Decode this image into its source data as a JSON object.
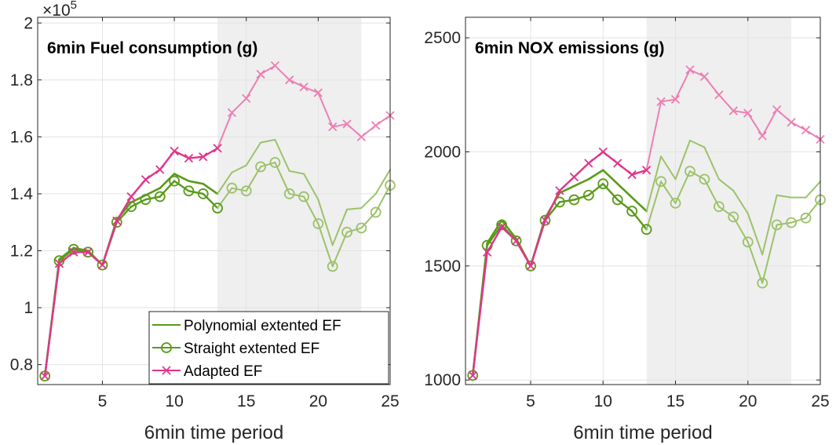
{
  "chart_data": [
    {
      "type": "line",
      "title": "6min Fuel consumption (g)",
      "xlabel": "6min time period",
      "ylabel": "",
      "y_multiplier": {
        "base": "×10",
        "exponent": "5"
      },
      "xlim": [
        0.5,
        25
      ],
      "ylim": [
        73000,
        202000
      ],
      "xticks": [
        5,
        10,
        15,
        20,
        25
      ],
      "xtick_labels": [
        "5",
        "10",
        "15",
        "20",
        "25"
      ],
      "yticks": [
        80000,
        100000,
        120000,
        140000,
        160000,
        180000,
        200000
      ],
      "ytick_labels": [
        "0.8",
        "1",
        "1.2",
        "1.4",
        "1.6",
        "1.8",
        "2"
      ],
      "grid": true,
      "shaded_region": [
        13,
        23
      ],
      "legend": {
        "placement": "bottom-right",
        "entries": [
          "Polynomial extented EF",
          "Straight extented EF",
          "Adapted EF"
        ]
      },
      "x": [
        1,
        2,
        3,
        4,
        5,
        6,
        7,
        8,
        9,
        10,
        11,
        12,
        13,
        14,
        15,
        16,
        17,
        18,
        19,
        20,
        21,
        22,
        23,
        24,
        25
      ],
      "series": [
        {
          "name": "Polynomial extented EF",
          "color": "#5a9a1a",
          "marker": "none",
          "values": [
            76000,
            117000,
            121000,
            120000,
            115000,
            131000,
            137000,
            139500,
            142000,
            147000,
            144500,
            143500,
            140000,
            147500,
            150000,
            158000,
            159000,
            148000,
            147000,
            138000,
            122000,
            134500,
            135000,
            140000,
            148500
          ]
        },
        {
          "name": "Straight extented EF",
          "color": "#5a9a1a",
          "marker": "circle",
          "values": [
            76000,
            116500,
            120500,
            119500,
            115000,
            130000,
            135500,
            138000,
            139000,
            144500,
            141000,
            140000,
            135000,
            142000,
            141000,
            149500,
            151000,
            140000,
            139000,
            129500,
            114500,
            126500,
            128000,
            133500,
            143000
          ]
        },
        {
          "name": "Adapted EF",
          "color": "#e0358a",
          "marker": "x",
          "values": [
            76000,
            115500,
            119500,
            119500,
            115000,
            130500,
            139000,
            145000,
            148500,
            155000,
            152500,
            153000,
            156000,
            168500,
            173500,
            182000,
            185000,
            180000,
            177500,
            175500,
            163500,
            164500,
            160000,
            164000,
            167500
          ]
        }
      ]
    },
    {
      "type": "line",
      "title": "6min NOX emissions (g)",
      "xlabel": "6min time period",
      "ylabel": "",
      "xlim": [
        0.5,
        25
      ],
      "ylim": [
        980,
        2590
      ],
      "xticks": [
        5,
        10,
        15,
        20,
        25
      ],
      "xtick_labels": [
        "5",
        "10",
        "15",
        "20",
        "25"
      ],
      "yticks": [
        1000,
        1500,
        2000,
        2500
      ],
      "ytick_labels": [
        "1000",
        "1500",
        "2000",
        "2500"
      ],
      "grid": true,
      "shaded_region": [
        13,
        23
      ],
      "x": [
        1,
        2,
        3,
        4,
        5,
        6,
        7,
        8,
        9,
        10,
        11,
        12,
        13,
        14,
        15,
        16,
        17,
        18,
        19,
        20,
        21,
        22,
        23,
        24,
        25
      ],
      "series": [
        {
          "name": "Polynomial extented EF",
          "color": "#5a9a1a",
          "marker": "none",
          "values": [
            1020,
            1600,
            1700,
            1620,
            1500,
            1710,
            1820,
            1850,
            1880,
            1920,
            1860,
            1800,
            1740,
            1980,
            1880,
            2050,
            2020,
            1880,
            1830,
            1730,
            1550,
            1810,
            1800,
            1800,
            1870
          ]
        },
        {
          "name": "Straight extented EF",
          "color": "#5a9a1a",
          "marker": "circle",
          "values": [
            1020,
            1590,
            1680,
            1610,
            1500,
            1700,
            1780,
            1790,
            1810,
            1860,
            1790,
            1740,
            1660,
            1870,
            1775,
            1915,
            1880,
            1760,
            1715,
            1605,
            1425,
            1680,
            1690,
            1710,
            1790
          ]
        },
        {
          "name": "Adapted EF",
          "color": "#e0358a",
          "marker": "x",
          "values": [
            1020,
            1560,
            1670,
            1610,
            1500,
            1700,
            1830,
            1890,
            1950,
            2000,
            1950,
            1900,
            1920,
            2220,
            2230,
            2360,
            2330,
            2250,
            2180,
            2170,
            2070,
            2185,
            2130,
            2095,
            2055
          ]
        }
      ]
    }
  ]
}
